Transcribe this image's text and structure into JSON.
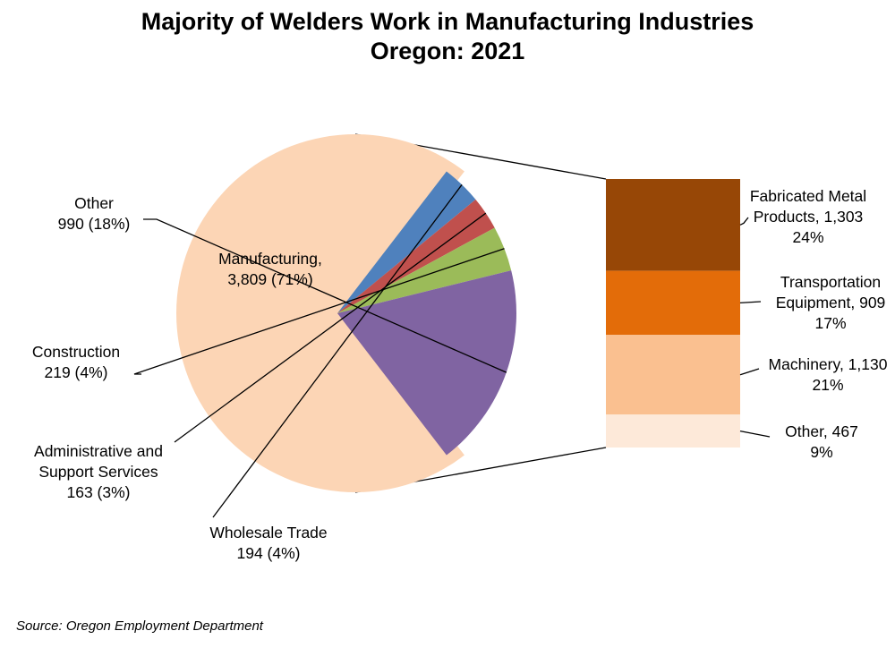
{
  "chart_data": {
    "type": "pie",
    "title": [
      "Majority of Welders Work in Manufacturing Industries",
      "Oregon: 2021"
    ],
    "main_pie": [
      {
        "name": "Manufacturing",
        "value": 3809,
        "label": [
          "Manufacturing,",
          "3,809 (71%)"
        ],
        "color": "#FCD5B5",
        "exploded": true
      },
      {
        "name": "Wholesale Trade",
        "value": 194,
        "label": [
          "Wholesale Trade",
          "194 (4%)"
        ],
        "color": "#4F81BD"
      },
      {
        "name": "Administrative and Support Services",
        "value": 163,
        "label": [
          "Administrative and",
          "Support Services",
          "163 (3%)"
        ],
        "color": "#C0504D"
      },
      {
        "name": "Construction",
        "value": 219,
        "label": [
          "Construction",
          "219 (4%)"
        ],
        "color": "#9BBB59"
      },
      {
        "name": "Other",
        "value": 990,
        "label": [
          "Other",
          "990 (18%)"
        ],
        "color": "#8064A2"
      }
    ],
    "breakdown_bar": [
      {
        "name": "Fabricated Metal Products",
        "value": 1303,
        "label": [
          "Fabricated Metal",
          "Products, 1,303",
          "24%"
        ],
        "color": "#974706"
      },
      {
        "name": "Transportation Equipment",
        "value": 909,
        "label": [
          "Transportation",
          "Equipment, 909",
          "17%"
        ],
        "color": "#E36C09"
      },
      {
        "name": "Machinery",
        "value": 1130,
        "label": [
          "Machinery, 1,130",
          "21%"
        ],
        "color": "#FAC090"
      },
      {
        "name": "Other",
        "value": 467,
        "label": [
          "Other, 467",
          "9%"
        ],
        "color": "#FDE9D9"
      }
    ],
    "source": "Source: Oregon Employment Department"
  }
}
